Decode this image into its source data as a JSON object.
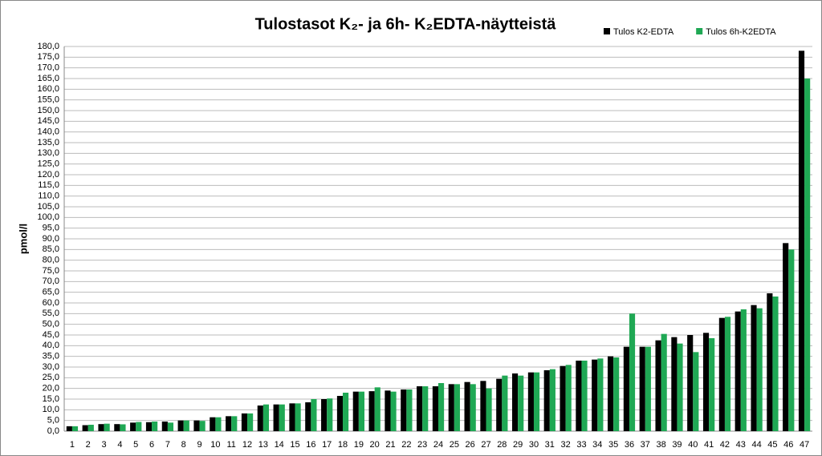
{
  "chart_data": {
    "type": "bar",
    "title": "Tulostasot K₂- ja 6h- K₂EDTA-näytteistä",
    "y_label": "pmol/l",
    "categories": [
      "1",
      "2",
      "3",
      "4",
      "5",
      "6",
      "7",
      "8",
      "9",
      "10",
      "11",
      "12",
      "13",
      "14",
      "15",
      "16",
      "17",
      "18",
      "19",
      "20",
      "21",
      "22",
      "23",
      "24",
      "25",
      "26",
      "27",
      "28",
      "29",
      "30",
      "31",
      "32",
      "33",
      "34",
      "35",
      "36",
      "37",
      "38",
      "39",
      "40",
      "41",
      "42",
      "43",
      "44",
      "45",
      "46",
      "47"
    ],
    "series": [
      {
        "name": "Tulos K2-EDTA",
        "color": "#000000",
        "values": [
          2.3,
          2.8,
          3.3,
          3.3,
          4.0,
          4.2,
          4.5,
          5.0,
          5.0,
          6.5,
          7.0,
          8.3,
          12.0,
          12.5,
          13.0,
          13.5,
          15.0,
          16.5,
          18.5,
          18.7,
          19.0,
          19.5,
          21.0,
          21.0,
          22.0,
          23.0,
          23.5,
          24.5,
          27.0,
          27.5,
          28.5,
          30.5,
          33.0,
          33.5,
          35.0,
          39.5,
          39.5,
          42.5,
          44.0,
          45.0,
          46.0,
          53.0,
          56.0,
          59.0,
          64.5,
          88.0,
          178.0
        ]
      },
      {
        "name": "Tulos 6h-K2EDTA",
        "color": "#1fa854",
        "values": [
          2.3,
          3.0,
          3.5,
          3.2,
          4.3,
          4.5,
          4.0,
          5.0,
          4.8,
          6.5,
          7.0,
          8.3,
          12.5,
          12.5,
          13.0,
          15.0,
          15.3,
          18.0,
          18.5,
          20.5,
          18.5,
          19.5,
          21.0,
          22.5,
          22.0,
          22.0,
          20.0,
          26.0,
          26.0,
          27.5,
          29.0,
          31.0,
          33.0,
          34.0,
          34.5,
          55.0,
          39.5,
          45.5,
          41.0,
          37.0,
          43.5,
          53.5,
          57.0,
          57.5,
          63.0,
          85.0,
          165.0
        ]
      }
    ],
    "ylim": [
      0,
      180
    ],
    "yticks": [
      {
        "value": 0,
        "label": "0,0"
      },
      {
        "value": 5,
        "label": "5,0"
      },
      {
        "value": 10,
        "label": "10,0"
      },
      {
        "value": 15,
        "label": "15,0"
      },
      {
        "value": 20,
        "label": "20,0"
      },
      {
        "value": 25,
        "label": "25,0"
      },
      {
        "value": 30,
        "label": "30,0"
      },
      {
        "value": 35,
        "label": "35,0"
      },
      {
        "value": 40,
        "label": "40,0"
      },
      {
        "value": 45,
        "label": "45,0"
      },
      {
        "value": 50,
        "label": "50,0"
      },
      {
        "value": 55,
        "label": "55,0"
      },
      {
        "value": 60,
        "label": "60,0"
      },
      {
        "value": 65,
        "label": "65,0"
      },
      {
        "value": 70,
        "label": "70,0"
      },
      {
        "value": 75,
        "label": "75,0"
      },
      {
        "value": 80,
        "label": "80,0"
      },
      {
        "value": 85,
        "label": "85,0"
      },
      {
        "value": 90,
        "label": "90,0"
      },
      {
        "value": 95,
        "label": "95,0"
      },
      {
        "value": 100,
        "label": "100,0"
      },
      {
        "value": 105,
        "label": "105,0"
      },
      {
        "value": 110,
        "label": "110,0"
      },
      {
        "value": 115,
        "label": "115,0"
      },
      {
        "value": 120,
        "label": "120,0"
      },
      {
        "value": 125,
        "label": "125,0"
      },
      {
        "value": 130,
        "label": "130,0"
      },
      {
        "value": 135,
        "label": "135,0"
      },
      {
        "value": 140,
        "label": "140,0"
      },
      {
        "value": 145,
        "label": "145,0"
      },
      {
        "value": 150,
        "label": "150,0"
      },
      {
        "value": 155,
        "label": "155,0"
      },
      {
        "value": 160,
        "label": "160,0"
      },
      {
        "value": 165,
        "label": "165,0"
      },
      {
        "value": 170,
        "label": "170,0"
      },
      {
        "value": 175,
        "label": "175,0"
      },
      {
        "value": 180,
        "label": "180,0"
      }
    ],
    "grid": true,
    "legend": "top-right"
  }
}
